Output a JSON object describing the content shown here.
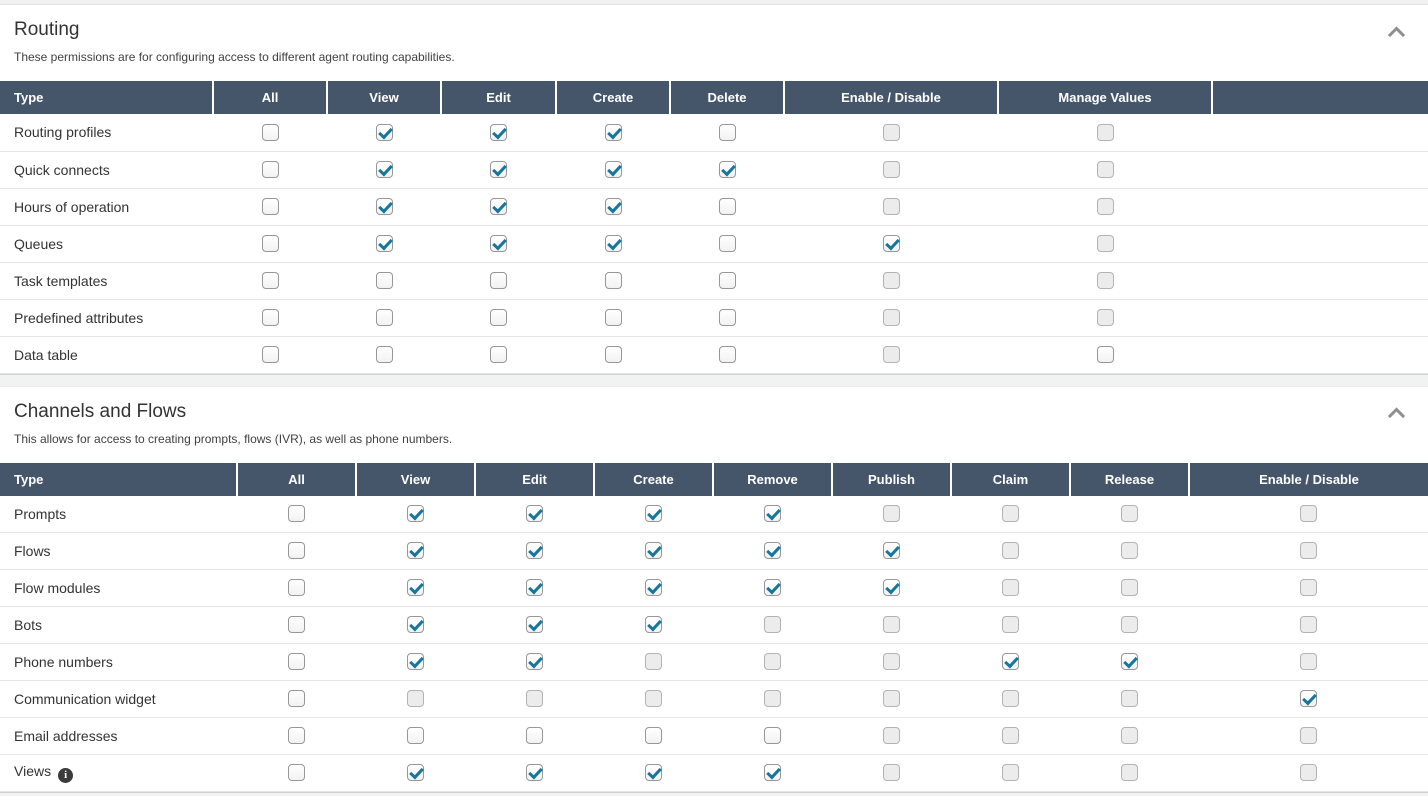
{
  "colors": {
    "header_bg": "#46566a",
    "checkmark": "#17769c"
  },
  "icons": {
    "collapse": "chevron-up",
    "views_info": "info-icon"
  },
  "sections": [
    {
      "title": "Routing",
      "description": "These permissions are for configuring access to different agent routing capabilities.",
      "columns": [
        "Type",
        "All",
        "View",
        "Edit",
        "Create",
        "Delete",
        "Enable / Disable",
        "Manage Values",
        ""
      ],
      "rows": [
        {
          "label": "Routing profiles",
          "cells": [
            "unchecked",
            "checked",
            "checked",
            "checked",
            "unchecked",
            "disabled",
            "disabled"
          ]
        },
        {
          "label": "Quick connects",
          "cells": [
            "unchecked",
            "checked",
            "checked",
            "checked",
            "checked",
            "disabled",
            "disabled"
          ]
        },
        {
          "label": "Hours of operation",
          "cells": [
            "unchecked",
            "checked",
            "checked",
            "checked",
            "unchecked",
            "disabled",
            "disabled"
          ]
        },
        {
          "label": "Queues",
          "cells": [
            "unchecked",
            "checked",
            "checked",
            "checked",
            "unchecked",
            "checked",
            "disabled"
          ]
        },
        {
          "label": "Task templates",
          "cells": [
            "unchecked",
            "unchecked",
            "unchecked",
            "unchecked",
            "unchecked",
            "disabled",
            "disabled"
          ]
        },
        {
          "label": "Predefined attributes",
          "cells": [
            "unchecked",
            "unchecked",
            "unchecked",
            "unchecked",
            "unchecked",
            "disabled",
            "disabled"
          ]
        },
        {
          "label": "Data table",
          "cells": [
            "unchecked",
            "unchecked",
            "unchecked",
            "unchecked",
            "unchecked",
            "disabled",
            "unchecked"
          ]
        }
      ]
    },
    {
      "title": "Channels and Flows",
      "description": "This allows for access to creating prompts, flows (IVR), as well as phone numbers.",
      "columns": [
        "Type",
        "All",
        "View",
        "Edit",
        "Create",
        "Remove",
        "Publish",
        "Claim",
        "Release",
        "Enable / Disable"
      ],
      "rows": [
        {
          "label": "Prompts",
          "cells": [
            "unchecked",
            "checked",
            "checked",
            "checked",
            "checked",
            "disabled",
            "disabled",
            "disabled",
            "disabled"
          ]
        },
        {
          "label": "Flows",
          "cells": [
            "unchecked",
            "checked",
            "checked",
            "checked",
            "checked",
            "checked",
            "disabled",
            "disabled",
            "disabled"
          ]
        },
        {
          "label": "Flow modules",
          "cells": [
            "unchecked",
            "checked",
            "checked",
            "checked",
            "checked",
            "checked",
            "disabled",
            "disabled",
            "disabled"
          ]
        },
        {
          "label": "Bots",
          "cells": [
            "unchecked",
            "checked",
            "checked",
            "checked",
            "disabled",
            "disabled",
            "disabled",
            "disabled",
            "disabled"
          ]
        },
        {
          "label": "Phone numbers",
          "cells": [
            "unchecked",
            "checked",
            "checked",
            "disabled",
            "disabled",
            "disabled",
            "checked",
            "checked",
            "disabled"
          ]
        },
        {
          "label": "Communication widget",
          "cells": [
            "unchecked",
            "disabled",
            "disabled",
            "disabled",
            "disabled",
            "disabled",
            "disabled",
            "disabled",
            "checked"
          ]
        },
        {
          "label": "Email addresses",
          "cells": [
            "unchecked",
            "unchecked",
            "unchecked",
            "unchecked",
            "unchecked",
            "disabled",
            "disabled",
            "disabled",
            "disabled"
          ]
        },
        {
          "label": "Views",
          "info": true,
          "cells": [
            "unchecked",
            "checked",
            "checked",
            "checked",
            "checked",
            "disabled",
            "disabled",
            "disabled",
            "disabled"
          ]
        }
      ]
    }
  ]
}
